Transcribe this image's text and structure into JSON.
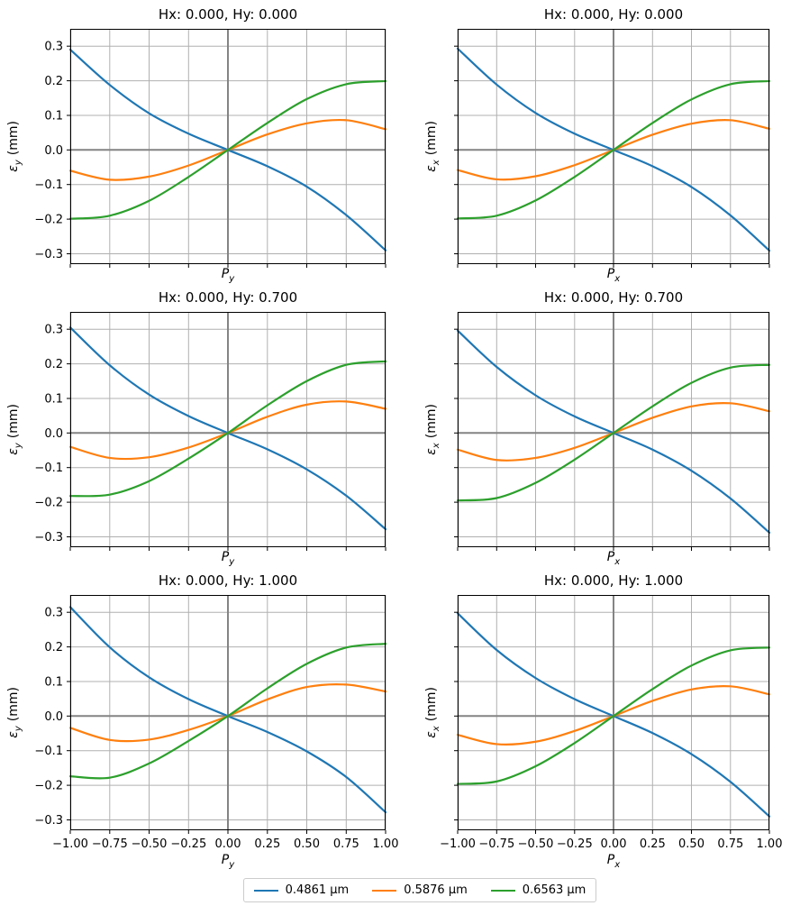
{
  "axes": {
    "xlim": [
      -1.0,
      1.0
    ],
    "ylim": [
      -0.33,
      0.35
    ],
    "xticks": [
      -1.0,
      -0.75,
      -0.5,
      -0.25,
      0.0,
      0.25,
      0.5,
      0.75,
      1.0
    ],
    "xtick_labels": [
      "−1.00",
      "−0.75",
      "−0.50",
      "−0.25",
      "0.00",
      "0.25",
      "0.50",
      "0.75",
      "1.00"
    ],
    "yticks": [
      -0.3,
      -0.2,
      -0.1,
      0.0,
      0.1,
      0.2,
      0.3
    ],
    "ytick_labels": [
      "−0.3",
      "−0.2",
      "−0.1",
      "0.0",
      "0.1",
      "0.2",
      "0.3"
    ],
    "grid": true,
    "grid_color": "#b0b0b0",
    "zero_line_color": "#848484",
    "spine_color": "#000000"
  },
  "legend": {
    "position": "bottom center",
    "entries": [
      {
        "label": "0.4861 µm",
        "color": "#1f77b4"
      },
      {
        "label": "0.5876 µm",
        "color": "#ff7f0e"
      },
      {
        "label": "0.6563 µm",
        "color": "#2ca02c"
      }
    ]
  },
  "chart_data": [
    {
      "type": "line",
      "title": "Hx: 0.000, Hy: 0.000",
      "xlabel": "Py",
      "xlabel_base": "P",
      "xlabel_sub": "y",
      "ylabel": "εy (mm)",
      "ylabel_base": "ε",
      "ylabel_sub": "y",
      "ylabel_unit": "(mm)",
      "x": [
        -1.0,
        -0.75,
        -0.5,
        -0.25,
        0.0,
        0.25,
        0.5,
        0.75,
        1.0
      ],
      "series": [
        {
          "name": "0.4861 µm",
          "color": "#1f77b4",
          "values": [
            0.29,
            0.188,
            0.106,
            0.047,
            0.0,
            -0.047,
            -0.106,
            -0.188,
            -0.29
          ]
        },
        {
          "name": "0.5876 µm",
          "color": "#ff7f0e",
          "values": [
            -0.06,
            -0.086,
            -0.077,
            -0.045,
            0.0,
            0.045,
            0.077,
            0.086,
            0.06
          ]
        },
        {
          "name": "0.6563 µm",
          "color": "#2ca02c",
          "values": [
            -0.199,
            -0.19,
            -0.147,
            -0.078,
            0.0,
            0.078,
            0.147,
            0.19,
            0.199
          ]
        }
      ]
    },
    {
      "type": "line",
      "title": "Hx: 0.000, Hy: 0.000",
      "xlabel": "Px",
      "xlabel_base": "P",
      "xlabel_sub": "x",
      "ylabel": "εx (mm)",
      "ylabel_base": "ε",
      "ylabel_sub": "x",
      "ylabel_unit": "(mm)",
      "x": [
        -1.0,
        -0.75,
        -0.5,
        -0.25,
        0.0,
        0.25,
        0.5,
        0.75,
        1.0
      ],
      "series": [
        {
          "name": "0.4861 µm",
          "color": "#1f77b4",
          "values": [
            0.293,
            0.189,
            0.107,
            0.047,
            0.0,
            -0.047,
            -0.107,
            -0.189,
            -0.291
          ]
        },
        {
          "name": "0.5876 µm",
          "color": "#ff7f0e",
          "values": [
            -0.058,
            -0.085,
            -0.076,
            -0.044,
            0.0,
            0.044,
            0.076,
            0.086,
            0.061
          ]
        },
        {
          "name": "0.6563 µm",
          "color": "#2ca02c",
          "values": [
            -0.198,
            -0.19,
            -0.146,
            -0.078,
            0.0,
            0.078,
            0.146,
            0.19,
            0.199
          ]
        }
      ]
    },
    {
      "type": "line",
      "title": "Hx: 0.000, Hy: 0.700",
      "xlabel": "Py",
      "xlabel_base": "P",
      "xlabel_sub": "y",
      "ylabel": "εy (mm)",
      "ylabel_base": "ε",
      "ylabel_sub": "y",
      "ylabel_unit": "(mm)",
      "x": [
        -1.0,
        -0.75,
        -0.5,
        -0.25,
        0.0,
        0.25,
        0.5,
        0.75,
        1.0
      ],
      "series": [
        {
          "name": "0.4861 µm",
          "color": "#1f77b4",
          "values": [
            0.305,
            0.196,
            0.111,
            0.049,
            0.0,
            -0.047,
            -0.105,
            -0.181,
            -0.278
          ]
        },
        {
          "name": "0.5876 µm",
          "color": "#ff7f0e",
          "values": [
            -0.04,
            -0.072,
            -0.07,
            -0.042,
            0.0,
            0.047,
            0.082,
            0.091,
            0.07
          ]
        },
        {
          "name": "0.6563 µm",
          "color": "#2ca02c",
          "values": [
            -0.182,
            -0.178,
            -0.139,
            -0.074,
            0.0,
            0.08,
            0.15,
            0.197,
            0.207
          ]
        }
      ]
    },
    {
      "type": "line",
      "title": "Hx: 0.000, Hy: 0.700",
      "xlabel": "Px",
      "xlabel_base": "P",
      "xlabel_sub": "x",
      "ylabel": "εx (mm)",
      "ylabel_base": "ε",
      "ylabel_sub": "x",
      "ylabel_unit": "(mm)",
      "x": [
        -1.0,
        -0.75,
        -0.5,
        -0.25,
        0.0,
        0.25,
        0.5,
        0.75,
        1.0
      ],
      "series": [
        {
          "name": "0.4861 µm",
          "color": "#1f77b4",
          "values": [
            0.296,
            0.191,
            0.109,
            0.048,
            0.0,
            -0.048,
            -0.109,
            -0.189,
            -0.288
          ]
        },
        {
          "name": "0.5876 µm",
          "color": "#ff7f0e",
          "values": [
            -0.048,
            -0.078,
            -0.072,
            -0.043,
            0.0,
            0.044,
            0.077,
            0.086,
            0.063
          ]
        },
        {
          "name": "0.6563 µm",
          "color": "#2ca02c",
          "values": [
            -0.195,
            -0.188,
            -0.144,
            -0.077,
            0.0,
            0.077,
            0.145,
            0.189,
            0.197
          ]
        }
      ]
    },
    {
      "type": "line",
      "title": "Hx: 0.000, Hy: 1.000",
      "xlabel": "Py",
      "xlabel_base": "P",
      "xlabel_sub": "y",
      "ylabel": "εy (mm)",
      "ylabel_base": "ε",
      "ylabel_sub": "y",
      "ylabel_unit": "(mm)",
      "x": [
        -1.0,
        -0.75,
        -0.5,
        -0.25,
        0.0,
        0.25,
        0.5,
        0.75,
        1.0
      ],
      "series": [
        {
          "name": "0.4861 µm",
          "color": "#1f77b4",
          "values": [
            0.315,
            0.199,
            0.112,
            0.049,
            0.0,
            -0.046,
            -0.102,
            -0.176,
            -0.278
          ]
        },
        {
          "name": "0.5876 µm",
          "color": "#ff7f0e",
          "values": [
            -0.034,
            -0.069,
            -0.068,
            -0.04,
            0.0,
            0.048,
            0.084,
            0.091,
            0.071
          ]
        },
        {
          "name": "0.6563 µm",
          "color": "#2ca02c",
          "values": [
            -0.174,
            -0.178,
            -0.137,
            -0.072,
            0.0,
            0.08,
            0.151,
            0.198,
            0.209
          ]
        }
      ]
    },
    {
      "type": "line",
      "title": "Hx: 0.000, Hy: 1.000",
      "xlabel": "Px",
      "xlabel_base": "P",
      "xlabel_sub": "x",
      "ylabel": "εx (mm)",
      "ylabel_base": "ε",
      "ylabel_sub": "x",
      "ylabel_unit": "(mm)",
      "x": [
        -1.0,
        -0.75,
        -0.5,
        -0.25,
        0.0,
        0.25,
        0.5,
        0.75,
        1.0
      ],
      "series": [
        {
          "name": "0.4861 µm",
          "color": "#1f77b4",
          "values": [
            0.297,
            0.191,
            0.11,
            0.049,
            0.0,
            -0.049,
            -0.11,
            -0.19,
            -0.29
          ]
        },
        {
          "name": "0.5876 µm",
          "color": "#ff7f0e",
          "values": [
            -0.054,
            -0.081,
            -0.074,
            -0.043,
            0.0,
            0.044,
            0.077,
            0.086,
            0.063
          ]
        },
        {
          "name": "0.6563 µm",
          "color": "#2ca02c",
          "values": [
            -0.196,
            -0.189,
            -0.145,
            -0.078,
            0.0,
            0.078,
            0.146,
            0.19,
            0.198
          ]
        }
      ]
    }
  ]
}
